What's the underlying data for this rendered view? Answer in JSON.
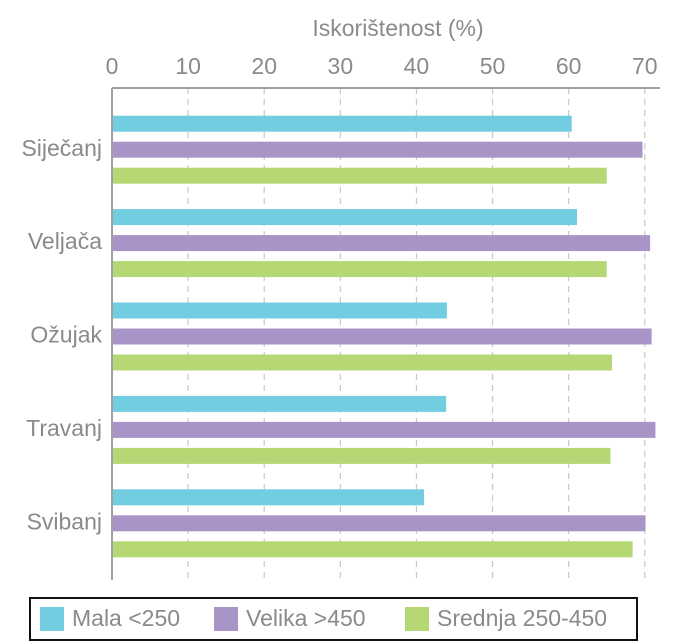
{
  "chart_data": {
    "type": "hbar",
    "xlabel": "Iskorištenost (%)",
    "categories": [
      "Siječanj",
      "Veljača",
      "Ožujak",
      "Travanj",
      "Svibanj"
    ],
    "series": [
      {
        "name": "Mala <250",
        "color": "#72cde0",
        "values": [
          60.4,
          61.1,
          44.0,
          43.9,
          41.0
        ]
      },
      {
        "name": "Velika >450",
        "color": "#a994c8",
        "values": [
          69.7,
          70.7,
          70.9,
          71.4,
          70.1
        ]
      },
      {
        "name": "Srednja 250-450",
        "color": "#b5d874",
        "values": [
          65.0,
          65.0,
          65.7,
          65.5,
          68.4
        ]
      }
    ],
    "xlim": [
      0,
      72
    ],
    "xticks": [
      0,
      10,
      20,
      30,
      40,
      50,
      60,
      70
    ],
    "grid": true,
    "legend": "bottom"
  }
}
